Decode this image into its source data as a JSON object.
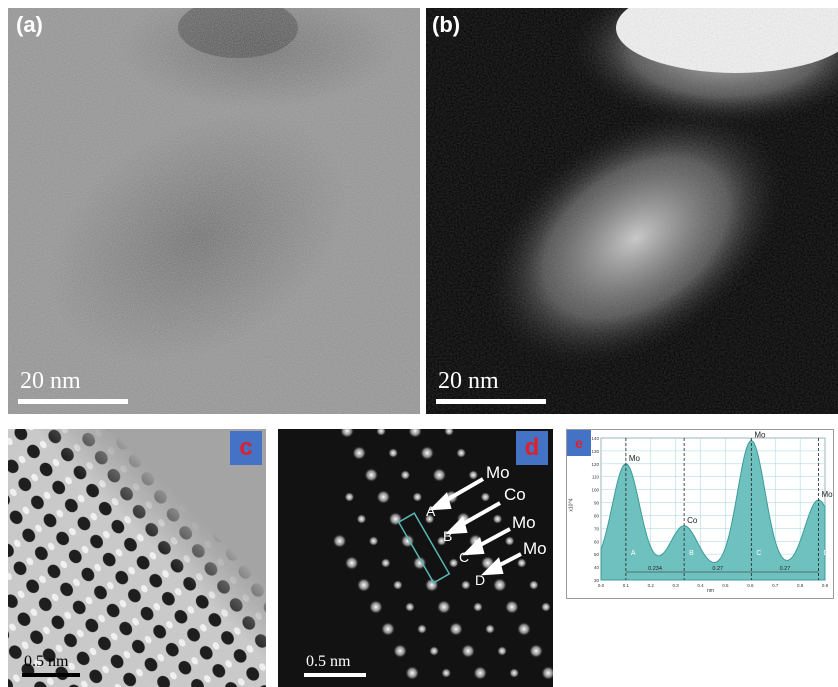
{
  "panels": {
    "a": {
      "label": "(a)",
      "scale": "20 nm"
    },
    "b": {
      "label": "(b)",
      "scale": "20 nm"
    },
    "c": {
      "label": "c",
      "scale": "0.5 nm"
    },
    "d": {
      "label": "d",
      "scale": "0.5 nm",
      "arrows": [
        "Mo",
        "Co",
        "Mo",
        "Mo"
      ],
      "points": [
        "A",
        "B",
        "C",
        "D"
      ]
    },
    "e": {
      "label": "e",
      "ylabel": "x10^4",
      "xlabel": "nm",
      "yticks": [
        "140",
        "130",
        "120",
        "110",
        "100",
        "90",
        "80",
        "70",
        "60",
        "50",
        "40",
        "30"
      ],
      "xticks": [
        "0.0",
        "0.1",
        "0.2",
        "0.3",
        "0.4",
        "0.5",
        "0.6",
        "0.7",
        "0.8",
        "0.9"
      ],
      "peaks": [
        {
          "element": "Mo",
          "letter": "A",
          "x": 0.1,
          "y": 120
        },
        {
          "element": "Co",
          "letter": "B",
          "x": 0.334,
          "y": 72
        },
        {
          "element": "Mo",
          "letter": "C",
          "x": 0.604,
          "y": 138
        },
        {
          "element": "Mo",
          "letter": "D",
          "x": 0.874,
          "y": 92
        }
      ],
      "distances": [
        "0.234",
        "0.27",
        "0.27"
      ]
    }
  },
  "colors": {
    "tag_bg": "#4472c4",
    "tag_text": "#e0202a",
    "profile_fill": "#6fc1bf"
  }
}
